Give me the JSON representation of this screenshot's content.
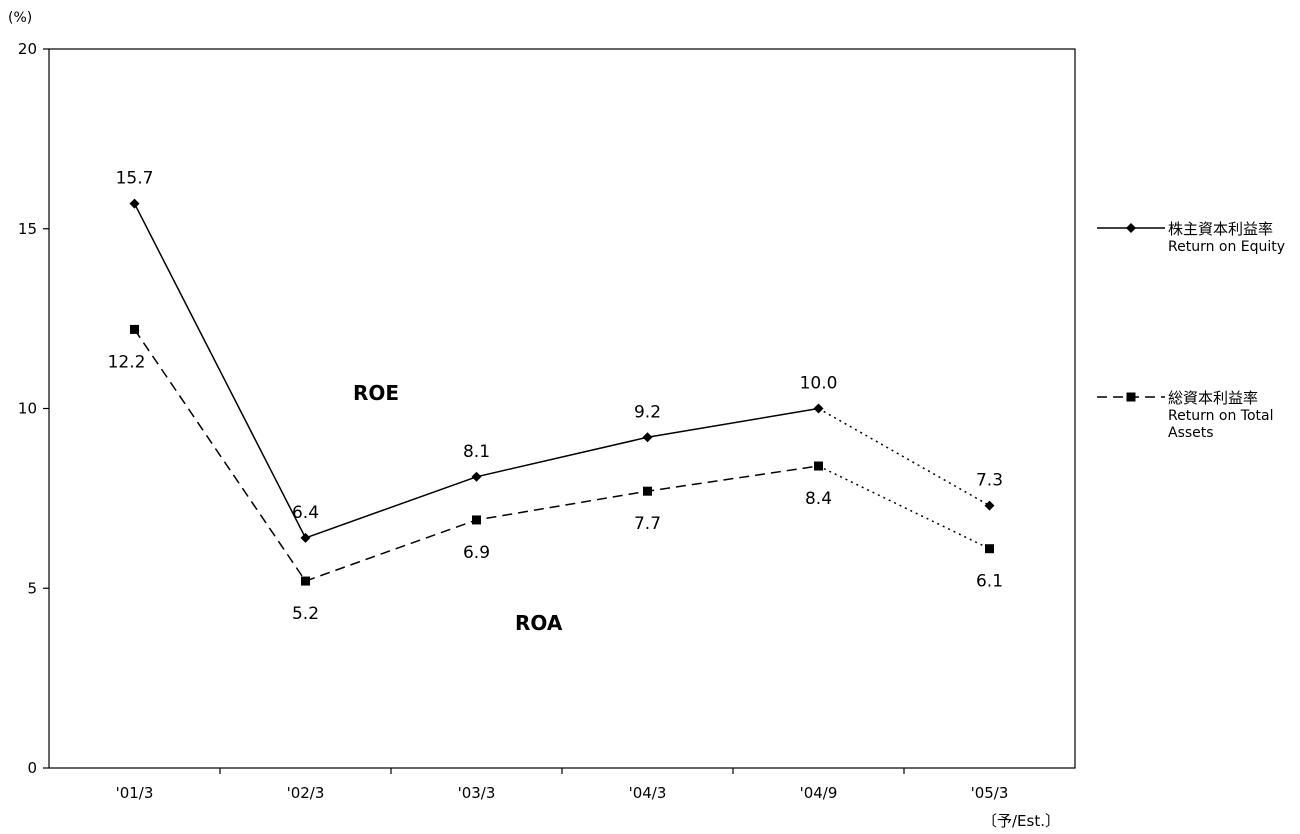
{
  "chart_data": {
    "type": "line",
    "y_unit": "(%)",
    "categories": [
      "'01/3",
      "'02/3",
      "'03/3",
      "'04/3",
      "'04/9",
      "'05/3"
    ],
    "estimate_note": "〔予/Est.〕",
    "ylim": [
      0,
      20
    ],
    "yticks": [
      0,
      5,
      10,
      15,
      20
    ],
    "grid": false,
    "legend_position": "right",
    "series": [
      {
        "key": "roe",
        "name": "株主資本利益率",
        "name_en": "Return on Equity",
        "tag": "ROE",
        "marker": "diamond",
        "values": [
          15.7,
          6.4,
          8.1,
          9.2,
          10.0,
          7.3
        ],
        "labels": [
          "15.7",
          "6.4",
          "8.1",
          "9.2",
          "10.0",
          "7.3"
        ]
      },
      {
        "key": "roa",
        "name": "総資本利益率",
        "name_en": [
          "Return on Total",
          "Assets"
        ],
        "tag": "ROA",
        "marker": "square",
        "values": [
          12.2,
          5.2,
          6.9,
          7.7,
          8.4,
          6.1
        ],
        "labels": [
          "12.2",
          "5.2",
          "6.9",
          "7.7",
          "8.4",
          "6.1"
        ]
      }
    ]
  }
}
